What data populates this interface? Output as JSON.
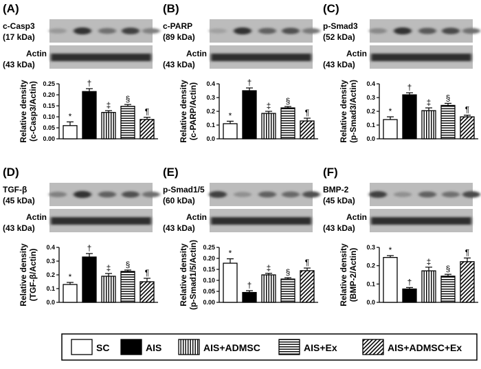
{
  "panels": [
    {
      "letter": "(A)",
      "blot_label_top": [
        "c-Casp3",
        "(17 kDa)"
      ],
      "blot_label_bottom": [
        "Actin",
        "(43 kDa)"
      ],
      "ylabel": [
        "Relative density",
        "(c-Casp3/Actin)"
      ],
      "band_intensity": [
        0.3,
        0.95,
        0.55,
        0.85,
        0.45
      ],
      "chart_data": {
        "type": "bar",
        "categories": [
          "SC",
          "AIS",
          "AIS+ADMSC",
          "AIS+Ex",
          "AIS+ADMSC+Ex"
        ],
        "values": [
          0.06,
          0.215,
          0.12,
          0.148,
          0.088
        ],
        "errors": [
          0.017,
          0.013,
          0.008,
          0.008,
          0.01
        ],
        "ylim": [
          0,
          0.25
        ],
        "yticks": [
          "0.00",
          "0.05",
          "0.10",
          "0.15",
          "0.20",
          "0.25"
        ],
        "annotations": [
          "*",
          "†",
          "‡",
          "§",
          "¶"
        ]
      }
    },
    {
      "letter": "(B)",
      "blot_label_top": [
        "c-PARP",
        "(89 kDa)"
      ],
      "blot_label_bottom": [
        "Actin",
        "(43 kDa)"
      ],
      "ylabel": [
        "Relative density",
        "(c-PARP/Actin)"
      ],
      "band_intensity": [
        0.25,
        0.95,
        0.65,
        0.75,
        0.5
      ],
      "chart_data": {
        "type": "bar",
        "categories": [
          "SC",
          "AIS",
          "AIS+ADMSC",
          "AIS+Ex",
          "AIS+ADMSC+Ex"
        ],
        "values": [
          0.11,
          0.35,
          0.185,
          0.225,
          0.13
        ],
        "errors": [
          0.018,
          0.02,
          0.015,
          0.01,
          0.02
        ],
        "ylim": [
          0,
          0.4
        ],
        "yticks": [
          "0.0",
          "0.1",
          "0.2",
          "0.3",
          "0.4"
        ],
        "annotations": [
          "*",
          "†",
          "‡",
          "§",
          "¶"
        ]
      }
    },
    {
      "letter": "(C)",
      "blot_label_top": [
        "p-Smad3",
        "(52 kDa)"
      ],
      "blot_label_bottom": [
        "Actin",
        "(43 kDa)"
      ],
      "ylabel": [
        "Relative density",
        "(p-Smad3/Actin)"
      ],
      "band_intensity": [
        0.4,
        0.95,
        0.7,
        0.8,
        0.55
      ],
      "chart_data": {
        "type": "bar",
        "categories": [
          "SC",
          "AIS",
          "AIS+ADMSC",
          "AIS+Ex",
          "AIS+ADMSC+Ex"
        ],
        "values": [
          0.14,
          0.32,
          0.205,
          0.243,
          0.16
        ],
        "errors": [
          0.02,
          0.015,
          0.02,
          0.015,
          0.012
        ],
        "ylim": [
          0,
          0.4
        ],
        "yticks": [
          "0.0",
          "0.1",
          "0.2",
          "0.3",
          "0.4"
        ],
        "annotations": [
          "*",
          "†",
          "‡",
          "§",
          "¶"
        ]
      }
    },
    {
      "letter": "(D)",
      "blot_label_top": [
        "TGF-β",
        "(45 kDa)"
      ],
      "blot_label_bottom": [
        "Actin",
        "(43 kDa)"
      ],
      "ylabel": [
        "Relative density",
        "(TGF-β/Actin)"
      ],
      "band_intensity": [
        0.45,
        0.95,
        0.65,
        0.75,
        0.55
      ],
      "chart_data": {
        "type": "bar",
        "categories": [
          "SC",
          "AIS",
          "AIS+ADMSC",
          "AIS+Ex",
          "AIS+ADMSC+Ex"
        ],
        "values": [
          0.13,
          0.33,
          0.19,
          0.225,
          0.15
        ],
        "errors": [
          0.015,
          0.025,
          0.02,
          0.01,
          0.025
        ],
        "ylim": [
          0,
          0.4
        ],
        "yticks": [
          "0.0",
          "0.1",
          "0.2",
          "0.3",
          "0.4"
        ],
        "annotations": [
          "*",
          "†",
          "‡",
          "§",
          "¶"
        ]
      }
    },
    {
      "letter": "(E)",
      "blot_label_top": [
        "p-Smad1/5",
        "(60 kDa)"
      ],
      "blot_label_bottom": [
        "Actin",
        "(43 kDa)"
      ],
      "ylabel": [
        "Relative density",
        "(p-Smad1/5/Actin)"
      ],
      "band_intensity": [
        0.85,
        0.35,
        0.65,
        0.6,
        0.75
      ],
      "chart_data": {
        "type": "bar",
        "categories": [
          "SC",
          "AIS",
          "AIS+ADMSC",
          "AIS+Ex",
          "AIS+ADMSC+Ex"
        ],
        "values": [
          0.178,
          0.045,
          0.125,
          0.106,
          0.144
        ],
        "errors": [
          0.02,
          0.008,
          0.007,
          0.006,
          0.012
        ],
        "ylim": [
          0,
          0.25
        ],
        "yticks": [
          "0.00",
          "0.05",
          "0.10",
          "0.15",
          "0.20",
          "0.25"
        ],
        "annotations": [
          "*",
          "†",
          "‡",
          "§",
          "¶"
        ]
      }
    },
    {
      "letter": "(F)",
      "blot_label_top": [
        "BMP-2",
        "(45 kDa)"
      ],
      "blot_label_bottom": [
        "Actin",
        "(43 kDa)"
      ],
      "ylabel": [
        "Relative density",
        "(BMP-2/Actin)"
      ],
      "band_intensity": [
        0.85,
        0.35,
        0.65,
        0.55,
        0.8
      ],
      "chart_data": {
        "type": "bar",
        "categories": [
          "SC",
          "AIS",
          "AIS+ADMSC",
          "AIS+Ex",
          "AIS+ADMSC+Ex"
        ],
        "values": [
          0.245,
          0.073,
          0.172,
          0.143,
          0.222
        ],
        "errors": [
          0.01,
          0.008,
          0.02,
          0.01,
          0.02
        ],
        "ylim": [
          0,
          0.3
        ],
        "yticks": [
          "0.0",
          "0.1",
          "0.2",
          "0.3"
        ],
        "annotations": [
          "*",
          "†",
          "‡",
          "§",
          "¶"
        ]
      }
    }
  ],
  "legend": {
    "items": [
      {
        "label": "SC",
        "pattern": "white"
      },
      {
        "label": "AIS",
        "pattern": "black"
      },
      {
        "label": "AIS+ADMSC",
        "pattern": "vertical-lines"
      },
      {
        "label": "AIS+Ex",
        "pattern": "horizontal-lines"
      },
      {
        "label": "AIS+ADMSC+Ex",
        "pattern": "diagonal-lines"
      }
    ]
  }
}
